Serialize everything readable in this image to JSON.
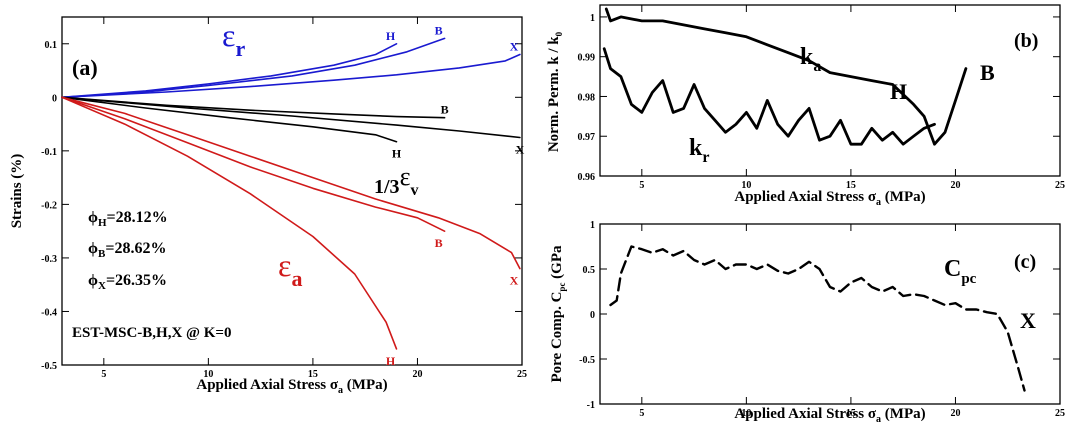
{
  "chart_data": [
    {
      "type": "line",
      "panel_label": "(a)",
      "xlabel": "Applied Axial Stress σ",
      "xlabel_sub": "a",
      "xlabel_unit": " (MPa)",
      "ylabel": "Strains (%)",
      "xlim": [
        3,
        25
      ],
      "ylim": [
        -0.5,
        0.15
      ],
      "x_ticks": [
        5,
        10,
        15,
        20,
        25
      ],
      "y_ticks": [
        0.1,
        0,
        -0.1,
        -0.2,
        -0.3,
        -0.4,
        -0.5
      ],
      "y_tick_labels": [
        "0.1",
        "0",
        "-0.1",
        "-0.2",
        "-0.3",
        "-0.4",
        "-0.5"
      ],
      "annotations": {
        "eps_r": {
          "sym": "ε",
          "sub": "r",
          "color": "#1a1ad0"
        },
        "eps_v": {
          "prefix": "1/3",
          "sym": "ε",
          "sub": "v",
          "color": "#000000"
        },
        "eps_a": {
          "sym": "ε",
          "sub": "a",
          "color": "#d01a1a"
        },
        "porosity": [
          {
            "sym": "ϕ",
            "sub": "H",
            "text": "=28.12%"
          },
          {
            "sym": "ϕ",
            "sub": "B",
            "text": "=28.62%"
          },
          {
            "sym": "ϕ",
            "sub": "X",
            "text": "=26.35%"
          }
        ],
        "note": "EST-MSC-B,H,X @ K=0"
      },
      "series": [
        {
          "group": "eps_r",
          "label": "H",
          "color": "#1a1ad0",
          "x": [
            3,
            7,
            10,
            13,
            16,
            18,
            19
          ],
          "y": [
            0,
            0.012,
            0.025,
            0.04,
            0.06,
            0.08,
            0.1
          ]
        },
        {
          "group": "eps_r",
          "label": "B",
          "color": "#1a1ad0",
          "x": [
            3,
            7,
            10,
            14,
            17,
            19.5,
            21.3
          ],
          "y": [
            0,
            0.01,
            0.022,
            0.04,
            0.06,
            0.085,
            0.11
          ]
        },
        {
          "group": "eps_r",
          "label": "X",
          "color": "#1a1ad0",
          "x": [
            3,
            8,
            12,
            16,
            19,
            22,
            24.2,
            24.9
          ],
          "y": [
            0,
            0.01,
            0.02,
            0.032,
            0.042,
            0.055,
            0.068,
            0.08
          ]
        },
        {
          "group": "eps_v",
          "label": "B",
          "color": "#000000",
          "x": [
            3,
            8,
            12,
            16,
            19,
            21.3
          ],
          "y": [
            0,
            -0.015,
            -0.024,
            -0.031,
            -0.036,
            -0.038
          ]
        },
        {
          "group": "eps_v",
          "label": "H",
          "color": "#000000",
          "x": [
            3,
            7,
            11,
            15,
            18,
            19
          ],
          "y": [
            0,
            -0.02,
            -0.038,
            -0.055,
            -0.07,
            -0.083
          ]
        },
        {
          "group": "eps_v",
          "label": "X",
          "color": "#000000",
          "x": [
            3,
            9,
            14,
            19,
            22,
            24.9
          ],
          "y": [
            0,
            -0.02,
            -0.035,
            -0.052,
            -0.063,
            -0.075
          ]
        },
        {
          "group": "eps_a",
          "label": "X",
          "color": "#d01a1a",
          "x": [
            3,
            6,
            9,
            12,
            15,
            18,
            21,
            23,
            24.5,
            24.9
          ],
          "y": [
            0,
            -0.03,
            -0.07,
            -0.11,
            -0.15,
            -0.19,
            -0.225,
            -0.255,
            -0.29,
            -0.32
          ]
        },
        {
          "group": "eps_a",
          "label": "B",
          "color": "#d01a1a",
          "x": [
            3,
            6,
            9,
            12,
            15,
            18,
            20,
            21.3
          ],
          "y": [
            0,
            -0.04,
            -0.085,
            -0.13,
            -0.17,
            -0.205,
            -0.225,
            -0.25
          ]
        },
        {
          "group": "eps_a",
          "label": "H",
          "color": "#d01a1a",
          "x": [
            3,
            6,
            9,
            12,
            15,
            17,
            18.5,
            19
          ],
          "y": [
            0,
            -0.05,
            -0.11,
            -0.18,
            -0.26,
            -0.33,
            -0.42,
            -0.47
          ]
        }
      ]
    },
    {
      "type": "line",
      "panel_label": "(b)",
      "xlabel": "Applied Axial Stress σ",
      "xlabel_sub": "a",
      "xlabel_unit": " (MPa)",
      "ylabel": "Norm. Perm. k / k",
      "ylabel_sub": "0",
      "xlim": [
        3,
        25
      ],
      "ylim": [
        0.96,
        1.003
      ],
      "x_ticks": [
        5,
        10,
        15,
        20,
        25
      ],
      "y_ticks": [
        1,
        0.99,
        0.98,
        0.97,
        0.96
      ],
      "y_tick_labels": [
        "1",
        "0.99",
        "0.98",
        "0.97",
        "0.96"
      ],
      "annotations": {
        "ka": {
          "sym": "k",
          "sub": "a"
        },
        "kr": {
          "sym": "k",
          "sub": "r"
        },
        "H": "H",
        "B": "B"
      },
      "series": [
        {
          "name": "k_a",
          "x": [
            3.3,
            3.5,
            4,
            5,
            6,
            7,
            8,
            9,
            10,
            11,
            12,
            13,
            14,
            15,
            16,
            17,
            18,
            18.5,
            19,
            19.5,
            20,
            20.5
          ],
          "y": [
            1.002,
            0.999,
            1,
            0.999,
            0.999,
            0.998,
            0.997,
            0.996,
            0.995,
            0.993,
            0.991,
            0.989,
            0.986,
            0.985,
            0.984,
            0.983,
            0.978,
            0.975,
            0.968,
            0.971,
            0.979,
            0.987
          ]
        },
        {
          "name": "k_r",
          "x": [
            3.2,
            3.5,
            4,
            4.5,
            5,
            5.5,
            6,
            6.5,
            7,
            7.5,
            8,
            8.5,
            9,
            9.5,
            10,
            10.5,
            11,
            11.5,
            12,
            12.5,
            13,
            13.5,
            14,
            14.5,
            15,
            15.5,
            16,
            16.5,
            17,
            17.5,
            18,
            18.5,
            19
          ],
          "y": [
            0.992,
            0.987,
            0.985,
            0.978,
            0.976,
            0.981,
            0.984,
            0.976,
            0.977,
            0.983,
            0.977,
            0.974,
            0.971,
            0.973,
            0.976,
            0.972,
            0.979,
            0.973,
            0.97,
            0.974,
            0.977,
            0.969,
            0.97,
            0.974,
            0.968,
            0.968,
            0.972,
            0.969,
            0.971,
            0.968,
            0.97,
            0.972,
            0.973
          ]
        }
      ]
    },
    {
      "type": "line",
      "panel_label": "(c)",
      "xlabel": "Applied Axial Stress σ",
      "xlabel_sub": "a",
      "xlabel_unit": " (MPa)",
      "ylabel": "Pore Comp. C",
      "ylabel_sub": "pc",
      "ylabel_unit": " (GPa",
      "xlim": [
        3,
        25
      ],
      "ylim": [
        -1,
        1
      ],
      "x_ticks": [
        5,
        10,
        15,
        20,
        25
      ],
      "y_ticks": [
        1,
        0.5,
        0,
        -0.5,
        -1
      ],
      "y_tick_labels": [
        "1",
        "0.5",
        "0",
        "-0.5",
        "-1"
      ],
      "annotations": {
        "cpc": {
          "sym": "C",
          "sub": "pc"
        },
        "X": "X"
      },
      "series": [
        {
          "name": "C_pc",
          "dash": true,
          "x": [
            3.5,
            3.8,
            4,
            4.5,
            5,
            5.5,
            6,
            6.5,
            7,
            7.5,
            8,
            8.5,
            9,
            9.5,
            10,
            10.5,
            11,
            11.5,
            12,
            12.5,
            13,
            13.5,
            14,
            14.5,
            15,
            15.5,
            16,
            16.5,
            17,
            17.5,
            18,
            18.5,
            19,
            19.5,
            20,
            20.5,
            21,
            21.5,
            22,
            22.5,
            23,
            23.3
          ],
          "y": [
            0.1,
            0.15,
            0.45,
            0.75,
            0.72,
            0.68,
            0.72,
            0.65,
            0.7,
            0.6,
            0.55,
            0.6,
            0.5,
            0.55,
            0.55,
            0.5,
            0.55,
            0.48,
            0.45,
            0.5,
            0.58,
            0.5,
            0.3,
            0.25,
            0.35,
            0.4,
            0.3,
            0.25,
            0.3,
            0.2,
            0.22,
            0.2,
            0.15,
            0.1,
            0.12,
            0.05,
            0.05,
            0.02,
            0.0,
            -0.2,
            -0.6,
            -0.85
          ]
        }
      ]
    }
  ]
}
